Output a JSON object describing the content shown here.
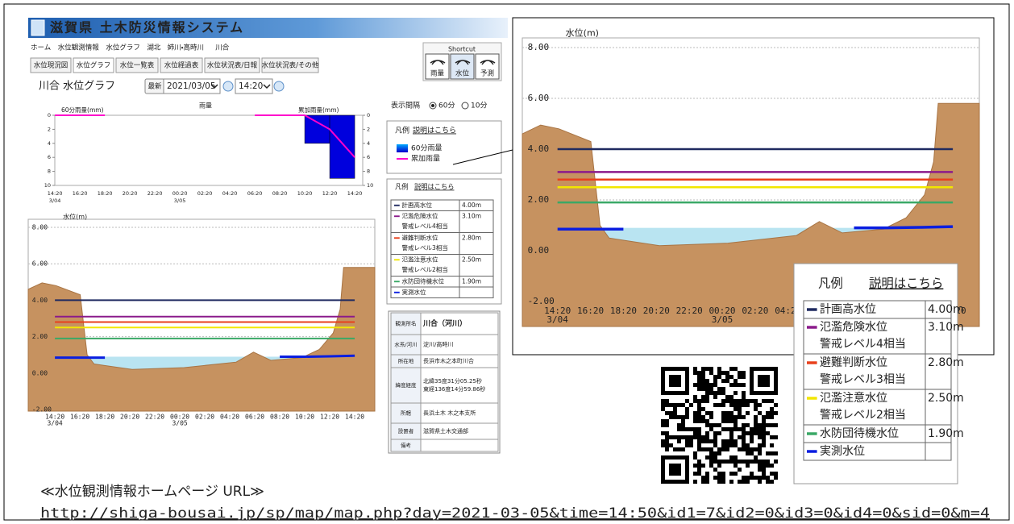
{
  "header": {
    "title": "滋賀県 土木防災情報システム"
  },
  "breadcrumb": [
    "ホーム",
    "水位観測情報",
    "水位グラフ",
    "湖北",
    "姉川・高時川",
    "川合"
  ],
  "shortcut": {
    "title": "Shortcut",
    "buttons": [
      "雨量",
      "水位",
      "予測"
    ]
  },
  "tabs": [
    "水位現況図",
    "水位グラフ",
    "水位一覧表",
    "水位経過表",
    "水位状況表/日報",
    "水位状況表/その他"
  ],
  "toolbar": {
    "heading": "川合 水位グラフ",
    "latest": "最新",
    "date": "2021/03/05",
    "time": "14:20"
  },
  "interval": {
    "label": "表示間隔",
    "options": [
      "60分",
      "10分"
    ]
  },
  "rain_chart": {
    "type": "bar",
    "title": "雨量",
    "y_label": "60分雨量(mm)",
    "y2_label": "累加雨量(mm)",
    "inverted": true,
    "ylim": [
      0,
      10
    ],
    "yticks": [
      0,
      2,
      4,
      6,
      8,
      10
    ],
    "y2lim": [
      0,
      10
    ],
    "y2ticks": [
      0,
      2,
      4,
      6,
      8,
      10
    ],
    "legend_title": "凡例",
    "legend_link": "説明はこちら",
    "series": [
      {
        "name": "60分雨量",
        "color": "#0000dd",
        "values": [
          0,
          0,
          0,
          null,
          null,
          null,
          null,
          null,
          0,
          0,
          0,
          4,
          9
        ]
      },
      {
        "name": "累加雨量",
        "color": "#ff00cc",
        "axis": "y2",
        "values": [
          0,
          0,
          0,
          null,
          null,
          null,
          null,
          null,
          0,
          0,
          0,
          2,
          6
        ]
      }
    ]
  },
  "water_chart": {
    "type": "line",
    "y_label": "水位(m)",
    "x": [
      "14:20",
      "16:20",
      "18:20",
      "20:20",
      "22:20",
      "00:20",
      "02:20",
      "04:20",
      "06:20",
      "08:20",
      "10:20",
      "12:20",
      "14:20"
    ],
    "x_dates": [
      "3/04",
      null,
      null,
      null,
      null,
      "3/05",
      null,
      null,
      null,
      null,
      null,
      null,
      null
    ],
    "ylim": [
      -2,
      8
    ],
    "yticks": [
      {
        "value": -2,
        "label": "-2.00"
      },
      {
        "value": 0,
        "label": "0.00"
      },
      {
        "value": 2,
        "label": "2.00"
      },
      {
        "value": 4,
        "label": "4.00"
      },
      {
        "value": 6,
        "label": "6.00"
      },
      {
        "value": 8,
        "label": "8.00"
      }
    ],
    "grid": true,
    "legend_title": "凡例",
    "legend_link": "説明はこちら",
    "levels": [
      {
        "name": "計画高水位",
        "color": "#1f2a60",
        "value": 4,
        "value_label": "4.00m"
      },
      {
        "name": "氾濫危険水位",
        "note": "警戒レベル4相当",
        "color": "#8b1a8b",
        "value": 3.1,
        "value_label": "3.10m"
      },
      {
        "name": "避難判断水位",
        "note": "警戒レベル3相当",
        "color": "#e8401c",
        "value": 2.8,
        "value_label": "2.80m"
      },
      {
        "name": "氾濫注意水位",
        "note": "警戒レベル2相当",
        "color": "#f2e600",
        "value": 2.5,
        "value_label": "2.50m"
      },
      {
        "name": "水防団待機水位",
        "color": "#3aa866",
        "value": 1.9,
        "value_label": "1.90m"
      }
    ],
    "series": [
      {
        "name": "実測水位",
        "color": "#0a1ee0",
        "values": [
          0.85,
          0.85,
          0.85,
          null,
          null,
          null,
          null,
          null,
          null,
          0.9,
          0.9,
          0.92,
          0.95
        ]
      }
    ]
  },
  "station_info": [
    {
      "label": "観測所名",
      "value": [
        "川合（河川）"
      ]
    },
    {
      "label": "水系/河川",
      "value": [
        "淀川/高時川"
      ]
    },
    {
      "label": "所在地",
      "value": [
        "長浜市木之本町川合"
      ]
    },
    {
      "label": "緯度経度",
      "value": [
        "北緯35度31分05.25秒",
        "東経136度14分59.86秒"
      ]
    },
    {
      "label": "所轄",
      "value": [
        "長浜土木 木之本支所"
      ]
    },
    {
      "label": "設置者",
      "value": [
        "滋賀県土木交通部"
      ]
    },
    {
      "label": "備考"
    }
  ],
  "footer": {
    "caption": "≪水位観測情報ホームページ URL≫",
    "url": "http://shiga-bousai.jp/sp/map/map.php?day=2021-03-05&time=14:50&id1=7&id2=0&id3=0&id4=0&sid=0&m=4"
  }
}
